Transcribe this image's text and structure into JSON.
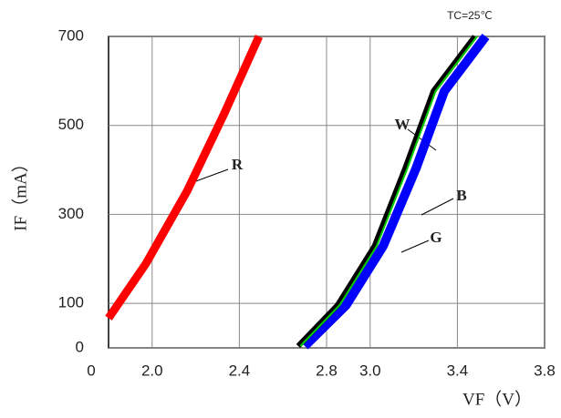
{
  "chart_data": {
    "type": "line",
    "annotation": "TC=25℃",
    "x_label": "VF（V）",
    "y_label": "IF（mA）",
    "origin_label": "0",
    "xlim": [
      1.8,
      3.8
    ],
    "ylim": [
      0,
      700
    ],
    "xticks": [
      {
        "value": 2.0,
        "label": "2.0"
      },
      {
        "value": 2.4,
        "label": "2.4"
      },
      {
        "value": 2.8,
        "label": "2.8"
      },
      {
        "value": 3.0,
        "label": "3.0"
      },
      {
        "value": 3.4,
        "label": "3.4"
      },
      {
        "value": 3.8,
        "label": "3.8"
      }
    ],
    "yticks": [
      0,
      100,
      300,
      500,
      700
    ],
    "grid": true,
    "series": [
      {
        "name": "R",
        "color": "#ff0000",
        "x": [
          1.8,
          1.97,
          2.16,
          2.33,
          2.49
        ],
        "values": [
          67,
          188,
          352,
          526,
          700
        ]
      },
      {
        "name": "B",
        "color": "#0000ff",
        "x": [
          2.7,
          2.89,
          3.06,
          3.21,
          3.34,
          3.53
        ],
        "values": [
          4,
          96,
          229,
          403,
          577,
          700
        ]
      },
      {
        "name": "W",
        "color": "#000000",
        "x": [
          2.67,
          2.85,
          3.02,
          3.16,
          3.29,
          3.48
        ],
        "values": [
          4,
          96,
          229,
          403,
          577,
          700
        ]
      },
      {
        "name": "G",
        "color": "#00cc00",
        "x": [
          2.68,
          2.86,
          3.03,
          3.17,
          3.3,
          3.49
        ],
        "values": [
          4,
          96,
          229,
          403,
          577,
          700
        ]
      }
    ]
  }
}
